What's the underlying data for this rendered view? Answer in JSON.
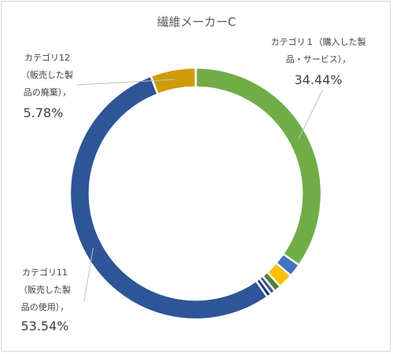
{
  "chart_data": {
    "type": "pie",
    "style": "donut",
    "title": "繊維メーカーC",
    "legend": "none",
    "slices": [
      {
        "name": "カテゴリ１（購入した製品・サービス）",
        "value": 34.44,
        "label_lines": [
          "カテゴリ１（購入した製",
          "品・サービス），"
        ],
        "value_text": "34.44%",
        "color": "#70ad47"
      },
      {
        "name": "slice-2",
        "value": 1.7,
        "color": "#4472c4"
      },
      {
        "name": "slice-3",
        "value": 1.9,
        "color": "#ffc000"
      },
      {
        "name": "slice-4",
        "value": 0.9,
        "color": "#548235"
      },
      {
        "name": "slice-5",
        "value": 0.6,
        "color": "#2f5597"
      },
      {
        "name": "slice-6",
        "value": 0.6,
        "color": "#203864"
      },
      {
        "name": "カテゴリ11（販売した製品の使用）",
        "value": 53.54,
        "label_lines": [
          "カテゴリ11",
          "（販売した製",
          "品の使用），"
        ],
        "value_text": "53.54%",
        "color": "#2e5597"
      },
      {
        "name": "カテゴリ12（販売した製品の廃棄）",
        "value": 5.78,
        "label_lines": [
          "カテゴリ12",
          "（販売した製",
          "品の廃棄），"
        ],
        "value_text": "5.78%",
        "color": "#d09b0a"
      }
    ]
  }
}
